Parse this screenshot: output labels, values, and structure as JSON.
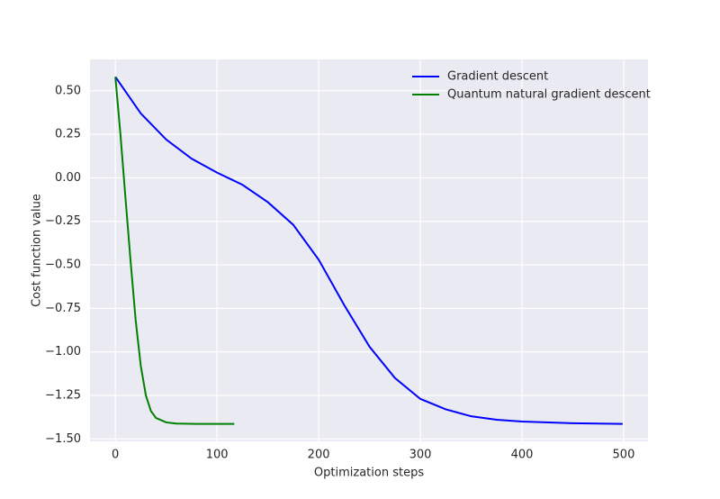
{
  "chart_data": {
    "type": "line",
    "xlabel": "Optimization steps",
    "ylabel": "Cost function value",
    "xlim": [
      -24.95,
      523.95
    ],
    "ylim": [
      -1.514,
      0.68
    ],
    "xticks": [
      0,
      100,
      200,
      300,
      400,
      500
    ],
    "yticks": [
      {
        "value": -1.5,
        "label": "−1.50"
      },
      {
        "value": -1.25,
        "label": "−1.25"
      },
      {
        "value": -1.0,
        "label": "−1.00"
      },
      {
        "value": -0.75,
        "label": "−0.75"
      },
      {
        "value": -0.5,
        "label": "−0.50"
      },
      {
        "value": -0.25,
        "label": "−0.25"
      },
      {
        "value": 0.0,
        "label": "0.00"
      },
      {
        "value": 0.25,
        "label": "0.25"
      },
      {
        "value": 0.5,
        "label": "0.50"
      }
    ],
    "grid": true,
    "legend": "upper right",
    "series": [
      {
        "name": "Gradient descent",
        "color": "#0000ff",
        "x": [
          0,
          25,
          50,
          75,
          100,
          125,
          150,
          175,
          200,
          225,
          250,
          275,
          300,
          325,
          350,
          375,
          400,
          450,
          499
        ],
        "values": [
          0.58,
          0.37,
          0.22,
          0.11,
          0.03,
          -0.04,
          -0.14,
          -0.27,
          -0.47,
          -0.73,
          -0.97,
          -1.15,
          -1.27,
          -1.33,
          -1.37,
          -1.39,
          -1.4,
          -1.41,
          -1.414
        ]
      },
      {
        "name": "Quantum natural gradient descent",
        "color": "#008000",
        "x": [
          0,
          5,
          10,
          15,
          20,
          25,
          30,
          35,
          40,
          50,
          60,
          80,
          117
        ],
        "values": [
          0.58,
          0.25,
          -0.12,
          -0.48,
          -0.82,
          -1.08,
          -1.25,
          -1.34,
          -1.38,
          -1.405,
          -1.412,
          -1.414,
          -1.414
        ]
      }
    ]
  }
}
